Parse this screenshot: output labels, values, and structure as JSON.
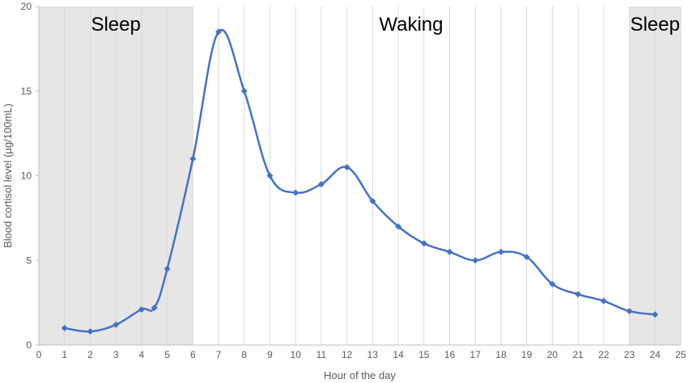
{
  "chart_data": {
    "type": "line",
    "xlabel": "Hour of the day",
    "ylabel": "Blood cortisol level (µg/100mL)",
    "xlim": [
      0,
      25
    ],
    "ylim": [
      0,
      20
    ],
    "x_ticks": [
      "0",
      "1",
      "2",
      "3",
      "4",
      "5",
      "6",
      "7",
      "8",
      "9",
      "10",
      "11",
      "12",
      "13",
      "14",
      "15",
      "16",
      "17",
      "18",
      "19",
      "20",
      "21",
      "22",
      "23",
      "24",
      "25"
    ],
    "y_ticks": [
      "0",
      "5",
      "10",
      "15",
      "20"
    ],
    "grid": "vertical",
    "shaded_regions": [
      {
        "label": "Sleep",
        "x_start": 0,
        "x_end": 6
      },
      {
        "label": "Waking",
        "x_start": 6,
        "x_end": 23
      },
      {
        "label": "Sleep",
        "x_start": 23,
        "x_end": 25
      }
    ],
    "series": [
      {
        "color": "#4472C4",
        "x": [
          1,
          2,
          3,
          4,
          4.5,
          5,
          6,
          7,
          8,
          9,
          10,
          11,
          12,
          13,
          14,
          15,
          16,
          17,
          18,
          19,
          20,
          21,
          22,
          23,
          24
        ],
        "values": [
          1.0,
          0.8,
          1.2,
          2.1,
          2.2,
          4.5,
          11.0,
          18.5,
          15.0,
          10.0,
          9.0,
          9.5,
          10.5,
          8.5,
          7.0,
          6.0,
          5.5,
          5.0,
          5.5,
          5.2,
          3.6,
          3.0,
          2.6,
          2.0,
          1.8
        ]
      }
    ],
    "colors": {
      "shade": "#e6e6e6",
      "grid": "#d9d9d9",
      "axis": "#bfbfbf",
      "text": "#595959"
    }
  }
}
